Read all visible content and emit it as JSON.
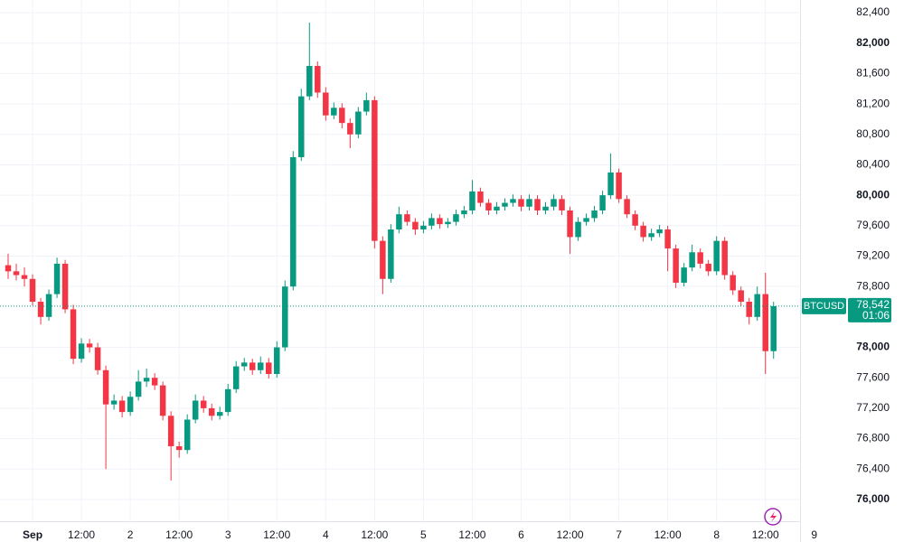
{
  "chart_data": {
    "type": "candlestick",
    "up_color": "#089981",
    "down_color": "#f23645",
    "grid": true,
    "xlim": [
      -8,
      188.5
    ],
    "ylim": [
      75714,
      82567
    ],
    "xticks": [
      {
        "value": 0,
        "label": "Sep"
      },
      {
        "value": 12,
        "label": "12:00"
      },
      {
        "value": 24,
        "label": "2"
      },
      {
        "value": 36,
        "label": "12:00"
      },
      {
        "value": 48,
        "label": "3"
      },
      {
        "value": 60,
        "label": "12:00"
      },
      {
        "value": 72,
        "label": "4"
      },
      {
        "value": 84,
        "label": "12:00"
      },
      {
        "value": 96,
        "label": "5"
      },
      {
        "value": 108,
        "label": "12:00"
      },
      {
        "value": 120,
        "label": "6"
      },
      {
        "value": 132,
        "label": "12:00"
      },
      {
        "value": 144,
        "label": "7"
      },
      {
        "value": 156,
        "label": "12:00"
      },
      {
        "value": 168,
        "label": "8"
      },
      {
        "value": 180,
        "label": "12:00"
      },
      {
        "value": 192,
        "label": "9"
      }
    ],
    "yticks": [
      {
        "value": 82400,
        "label": "82,400"
      },
      {
        "value": 82000,
        "label": "82,000",
        "bold": true
      },
      {
        "value": 81600,
        "label": "81,600"
      },
      {
        "value": 81200,
        "label": "81,200"
      },
      {
        "value": 80800,
        "label": "80,800"
      },
      {
        "value": 80400,
        "label": "80,400"
      },
      {
        "value": 80000,
        "label": "80,000",
        "bold": true
      },
      {
        "value": 79600,
        "label": "79,600"
      },
      {
        "value": 79200,
        "label": "79,200"
      },
      {
        "value": 78800,
        "label": "78,800"
      },
      {
        "value": 78000,
        "label": "78,000",
        "bold": true
      },
      {
        "value": 77600,
        "label": "77,600"
      },
      {
        "value": 77200,
        "label": "77,200"
      },
      {
        "value": 76800,
        "label": "76,800"
      },
      {
        "value": 76400,
        "label": "76,400"
      },
      {
        "value": 76000,
        "label": "76,000",
        "bold": true
      }
    ],
    "last_price": {
      "symbol": "BTCUSD",
      "value": 78542,
      "label": "78,542",
      "countdown": "01:06"
    },
    "x": [
      -6,
      -4,
      -2,
      0,
      2,
      4,
      6,
      8,
      10,
      12,
      14,
      16,
      18,
      20,
      22,
      24,
      26,
      28,
      30,
      32,
      34,
      36,
      38,
      40,
      42,
      44,
      46,
      48,
      50,
      52,
      54,
      56,
      58,
      60,
      62,
      64,
      66,
      68,
      70,
      72,
      74,
      76,
      78,
      80,
      82,
      84,
      86,
      88,
      90,
      92,
      94,
      96,
      98,
      100,
      102,
      104,
      106,
      108,
      110,
      112,
      114,
      116,
      118,
      120,
      122,
      124,
      126,
      128,
      130,
      132,
      134,
      136,
      138,
      140,
      142,
      144,
      146,
      148,
      150,
      152,
      154,
      156,
      158,
      160,
      162,
      164,
      166,
      168,
      170,
      172,
      174,
      176,
      178,
      180,
      182
    ],
    "open": [
      79080,
      79000,
      78950,
      78900,
      78600,
      78400,
      78700,
      79100,
      78500,
      77850,
      78050,
      78000,
      77700,
      77250,
      77300,
      77150,
      77350,
      77550,
      77600,
      77500,
      77100,
      76700,
      76650,
      77050,
      77300,
      77200,
      77100,
      77150,
      77450,
      77750,
      77800,
      77700,
      77800,
      77650,
      78000,
      78800,
      80500,
      81300,
      81700,
      81350,
      81050,
      81150,
      80950,
      80800,
      81100,
      81250,
      79400,
      78900,
      79550,
      79750,
      79650,
      79550,
      79600,
      79700,
      79620,
      79650,
      79750,
      79800,
      80050,
      79900,
      79800,
      79850,
      79900,
      79950,
      79850,
      79950,
      79800,
      79850,
      79950,
      79800,
      79450,
      79650,
      79700,
      79800,
      80000,
      80300,
      79950,
      79750,
      79600,
      79450,
      79500,
      79550,
      79300,
      78850,
      79050,
      79250,
      79100,
      79000,
      79400,
      78950,
      78750,
      78600,
      78400,
      78700,
      77950
    ],
    "high": [
      79230,
      79100,
      79050,
      78960,
      78650,
      78760,
      79180,
      79150,
      78560,
      78120,
      78110,
      78060,
      77760,
      77380,
      77360,
      77420,
      77700,
      77720,
      77660,
      77550,
      77160,
      76760,
      77120,
      77380,
      77360,
      77260,
      77220,
      77520,
      77820,
      77860,
      77850,
      77880,
      77860,
      78080,
      78880,
      80580,
      81400,
      82270,
      81760,
      81420,
      81220,
      81210,
      81010,
      81160,
      81350,
      81300,
      79460,
      79620,
      79850,
      79800,
      79700,
      79660,
      79760,
      79750,
      79700,
      79810,
      79860,
      80200,
      80100,
      79950,
      79910,
      79960,
      80010,
      80000,
      80010,
      80000,
      79910,
      80010,
      80000,
      79850,
      79710,
      79760,
      79860,
      80060,
      80550,
      80350,
      80000,
      79800,
      79650,
      79560,
      79610,
      79600,
      79350,
      79110,
      79350,
      79300,
      79150,
      79460,
      79450,
      79000,
      78800,
      78650,
      78800,
      78980,
      78600
    ],
    "low": [
      78900,
      78880,
      78800,
      78550,
      78300,
      78350,
      78650,
      78450,
      77780,
      77800,
      77930,
      77640,
      76400,
      77180,
      77080,
      77100,
      77300,
      77480,
      77440,
      77040,
      76250,
      76550,
      76600,
      77000,
      77140,
      77040,
      77050,
      77100,
      77400,
      77690,
      77640,
      77650,
      77590,
      77600,
      77950,
      78750,
      80450,
      81250,
      81280,
      80980,
      81000,
      80880,
      80620,
      80750,
      81050,
      79300,
      78700,
      78850,
      79500,
      79600,
      79480,
      79500,
      79550,
      79560,
      79570,
      79600,
      79700,
      79750,
      79850,
      79740,
      79750,
      79800,
      79850,
      79790,
      79800,
      79740,
      79750,
      79800,
      79740,
      79230,
      79400,
      79600,
      79650,
      79750,
      79950,
      79900,
      79700,
      79540,
      79390,
      79400,
      79450,
      79000,
      78780,
      78800,
      79000,
      79040,
      78940,
      78950,
      78890,
      78690,
      78540,
      78300,
      78350,
      77650,
      77850
    ],
    "close": [
      79000,
      78950,
      78900,
      78600,
      78400,
      78700,
      79100,
      78500,
      77850,
      78050,
      78000,
      77700,
      77250,
      77300,
      77150,
      77350,
      77550,
      77600,
      77500,
      77100,
      76700,
      76650,
      77050,
      77300,
      77200,
      77100,
      77150,
      77450,
      77750,
      77800,
      77700,
      77800,
      77650,
      78000,
      78800,
      80500,
      81300,
      81700,
      81350,
      81050,
      81150,
      80950,
      80800,
      81100,
      81250,
      79400,
      78900,
      79550,
      79750,
      79650,
      79550,
      79600,
      79700,
      79620,
      79650,
      79750,
      79800,
      80050,
      79900,
      79800,
      79850,
      79900,
      79950,
      79850,
      79950,
      79800,
      79850,
      79950,
      79800,
      79450,
      79650,
      79700,
      79800,
      80000,
      80300,
      79950,
      79750,
      79600,
      79450,
      79500,
      79550,
      79300,
      78850,
      79050,
      79250,
      79100,
      79000,
      79400,
      78950,
      78750,
      78600,
      78400,
      78700,
      77950,
      78542
    ]
  }
}
